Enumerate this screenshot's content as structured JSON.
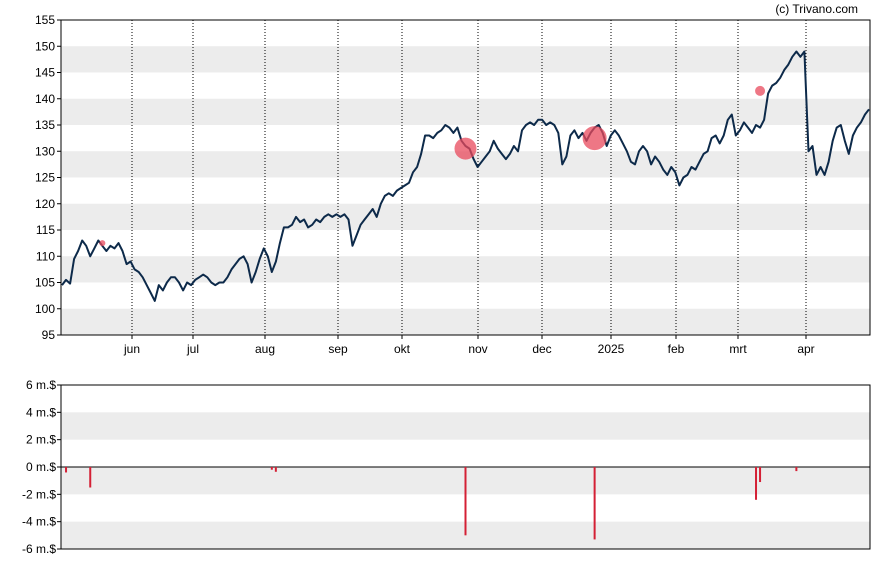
{
  "copyright": "(c) Trivano.com",
  "chart_data": [
    {
      "type": "line",
      "grid": "horizontal bands, dotted vertical month lines",
      "ylim": [
        95,
        155
      ],
      "y_ticks": [
        95,
        100,
        105,
        110,
        115,
        120,
        125,
        130,
        135,
        140,
        145,
        150,
        155
      ],
      "x_labels": [
        "jun",
        "jul",
        "aug",
        "sep",
        "okt",
        "nov",
        "dec",
        "2025",
        "feb",
        "mrt",
        "apr"
      ],
      "line_color": "#0d2a4a",
      "marker_color": "#e8495c",
      "series": [
        {
          "values": [
            104.5,
            105.5,
            104.8,
            109.5,
            111,
            113,
            112,
            110,
            111.5,
            113,
            112,
            111,
            112,
            111.5,
            112.5,
            111,
            108.5,
            109,
            107.5,
            107,
            106,
            104.5,
            103,
            101.5,
            104.5,
            103.5,
            105,
            106,
            106,
            105,
            103.5,
            105,
            104.5,
            105.5,
            106,
            106.5,
            106,
            105,
            104.5,
            105,
            105,
            106,
            107.5,
            108.5,
            109.5,
            110,
            108.5,
            105,
            107,
            109.5,
            111.5,
            110,
            107,
            109,
            112.5,
            115.5,
            115.5,
            116,
            117.5,
            116.5,
            117,
            115.5,
            116,
            117,
            116.5,
            117.5,
            118,
            117.5,
            118,
            117.5,
            118,
            117,
            112,
            114,
            116,
            117,
            118,
            119,
            117.5,
            120,
            121.5,
            122,
            121.5,
            122.5,
            123,
            123.5,
            124,
            126,
            127,
            129.5,
            133,
            133,
            132.5,
            133.5,
            134,
            135,
            134.5,
            133.5,
            134.5,
            132,
            131,
            130.5,
            128.5,
            127,
            128,
            129,
            130,
            132,
            130.5,
            129.5,
            128.5,
            129.5,
            131,
            130,
            134,
            135,
            135.5,
            135,
            136,
            136,
            135,
            135.5,
            135,
            133.5,
            127.5,
            129,
            133,
            134,
            132.5,
            133.5,
            132,
            133.5,
            134.5,
            135,
            133.5,
            131,
            133,
            134,
            133,
            131.5,
            130,
            128,
            127.5,
            130,
            131,
            130,
            127.5,
            129,
            128,
            126.5,
            125.5,
            127,
            126,
            123.5,
            125,
            125.5,
            127,
            126.5,
            128,
            129.5,
            130,
            132.5,
            133,
            131.5,
            133,
            136,
            137,
            133,
            134,
            135.5,
            134.5,
            133.5,
            135,
            134.5,
            136,
            141,
            142.5,
            143,
            144,
            145.5,
            146.5,
            148,
            149,
            148,
            149,
            130,
            131,
            125.5,
            127,
            125.5,
            128,
            132,
            134.5,
            135,
            132,
            129.5,
            133,
            134.5,
            135.5,
            137,
            138
          ]
        },
        {
          "name": "",
          "values": []
        }
      ],
      "markers": [
        {
          "index": 10,
          "value": 112.5,
          "size": 3
        },
        {
          "index": 100,
          "value": 130.5,
          "size": 11
        },
        {
          "index": 132,
          "value": 132.5,
          "size": 12
        },
        {
          "index": 173,
          "value": 141.5,
          "size": 5
        }
      ]
    },
    {
      "type": "bar",
      "ylim": [
        -6,
        6
      ],
      "y_ticks": [
        "6 m.$",
        "4 m.$",
        "2 m.$",
        "0 m.$",
        "-2 m.$",
        "-4 m.$",
        "-6 m.$"
      ],
      "y_tick_values": [
        6,
        4,
        2,
        0,
        -2,
        -4,
        -6
      ],
      "unit": "m.$",
      "bar_color": "#d42035",
      "bars": [
        {
          "index": 1,
          "value": -0.4
        },
        {
          "index": 7,
          "value": -1.5
        },
        {
          "index": 52,
          "value": -0.2
        },
        {
          "index": 53,
          "value": -0.35
        },
        {
          "index": 100,
          "value": -5.0
        },
        {
          "index": 132,
          "value": -5.3
        },
        {
          "index": 172,
          "value": -2.4
        },
        {
          "index": 173,
          "value": -1.1
        },
        {
          "index": 182,
          "value": -0.3
        }
      ]
    }
  ]
}
